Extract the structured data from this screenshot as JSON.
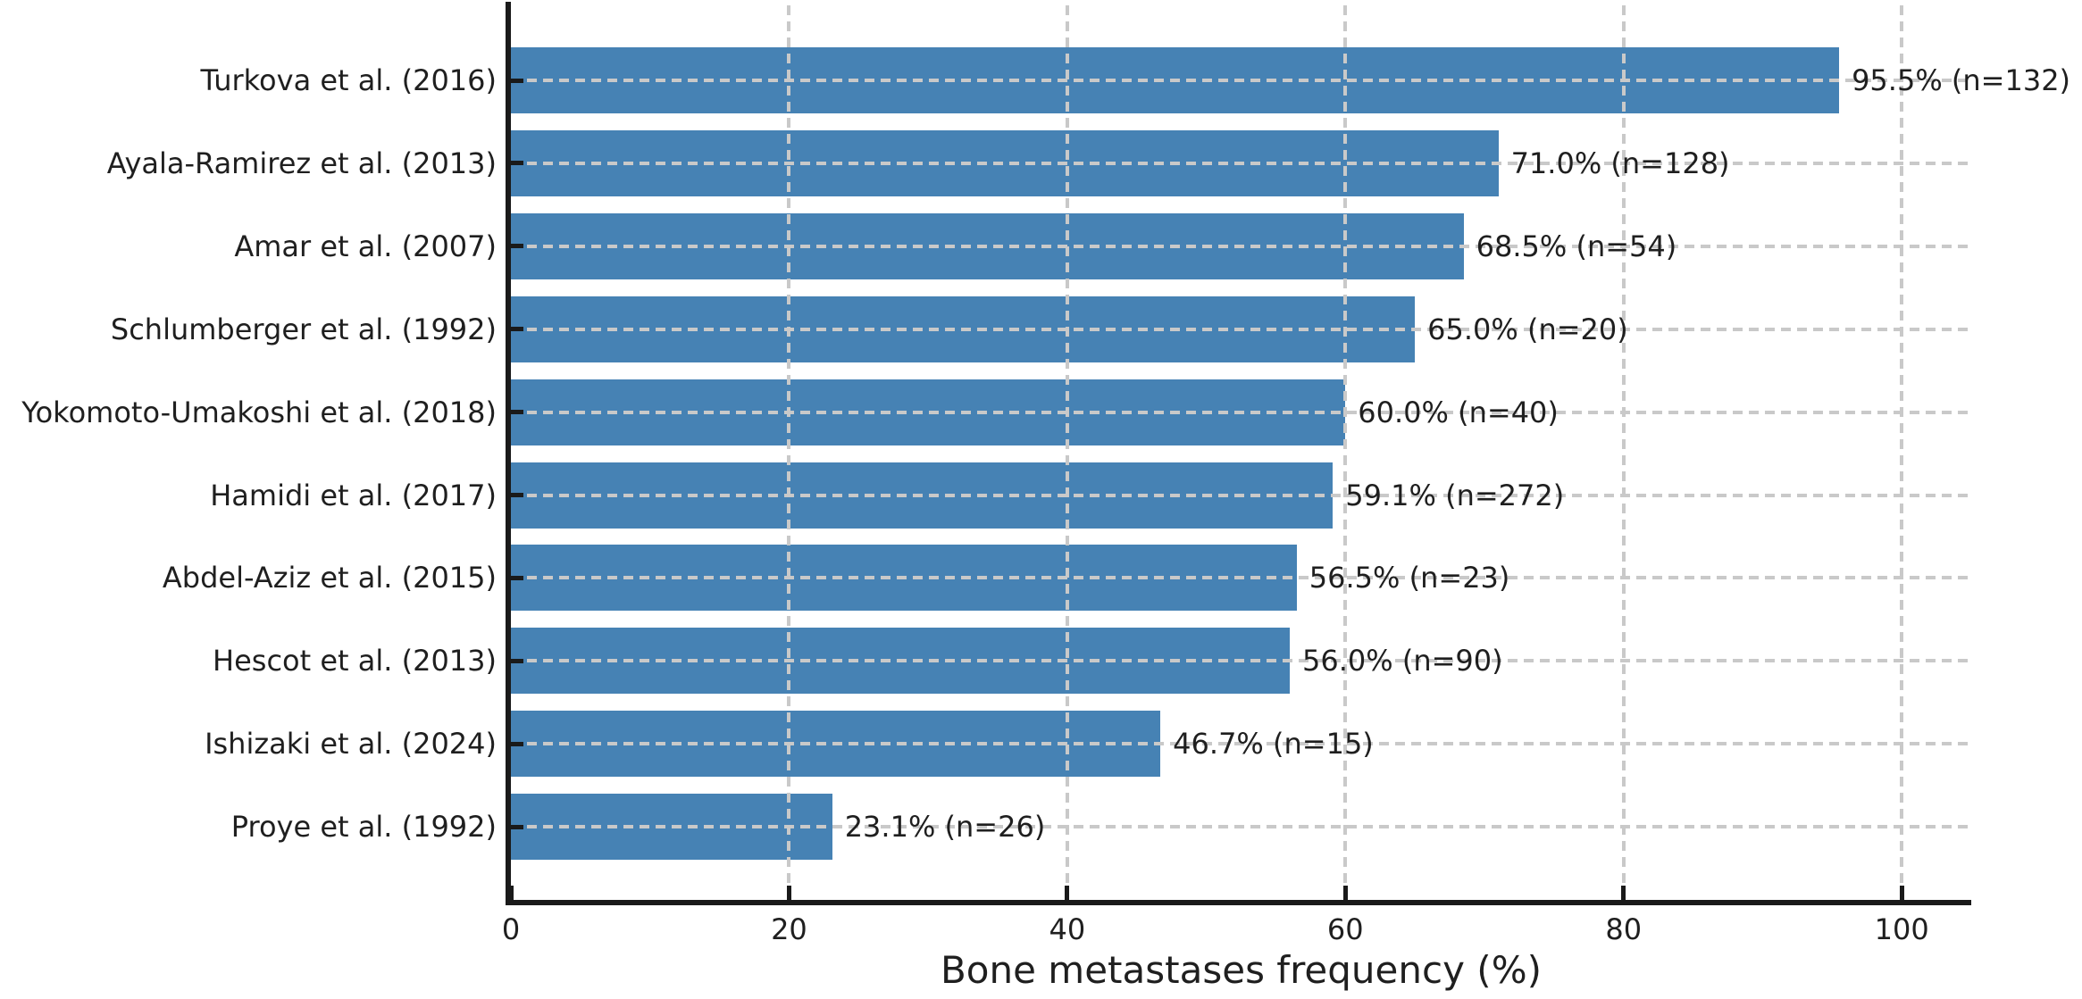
{
  "chart_data": {
    "type": "bar",
    "orientation": "horizontal",
    "categories": [
      "Turkova et al. (2016)",
      "Ayala-Ramirez et al. (2013)",
      "Amar et al. (2007)",
      "Schlumberger et al. (1992)",
      "Yokomoto-Umakoshi et al. (2018)",
      "Hamidi et al. (2017)",
      "Abdel-Aziz et al. (2015)",
      "Hescot et al. (2013)",
      "Ishizaki et al. (2024)",
      "Proye et al. (1992)"
    ],
    "values": [
      95.5,
      71.0,
      68.5,
      65.0,
      60.0,
      59.1,
      56.5,
      56.0,
      46.7,
      23.1
    ],
    "n_values": [
      132,
      128,
      54,
      20,
      40,
      272,
      23,
      90,
      15,
      26
    ],
    "bar_labels": [
      "95.5% (n=132)",
      "71.0% (n=128)",
      "68.5% (n=54)",
      "65.0% (n=20)",
      "60.0% (n=40)",
      "59.1% (n=272)",
      "56.5% (n=23)",
      "56.0% (n=90)",
      "46.7% (n=15)",
      "23.1% (n=26)"
    ],
    "xlabel": "Bone metastases frequency (%)",
    "xticks": [
      0,
      20,
      40,
      60,
      80,
      100
    ],
    "xtick_labels": [
      "0",
      "20",
      "40",
      "60",
      "80",
      "100"
    ],
    "xlim": [
      0,
      105
    ],
    "grid": "dashed gridlines on both axes, drawn above bars",
    "legend": "none",
    "bar_color": "#4682b4",
    "grid_color": "#c9c9c9",
    "axis_color": "#1a1a1a",
    "text_color": "#1f1f1f"
  }
}
